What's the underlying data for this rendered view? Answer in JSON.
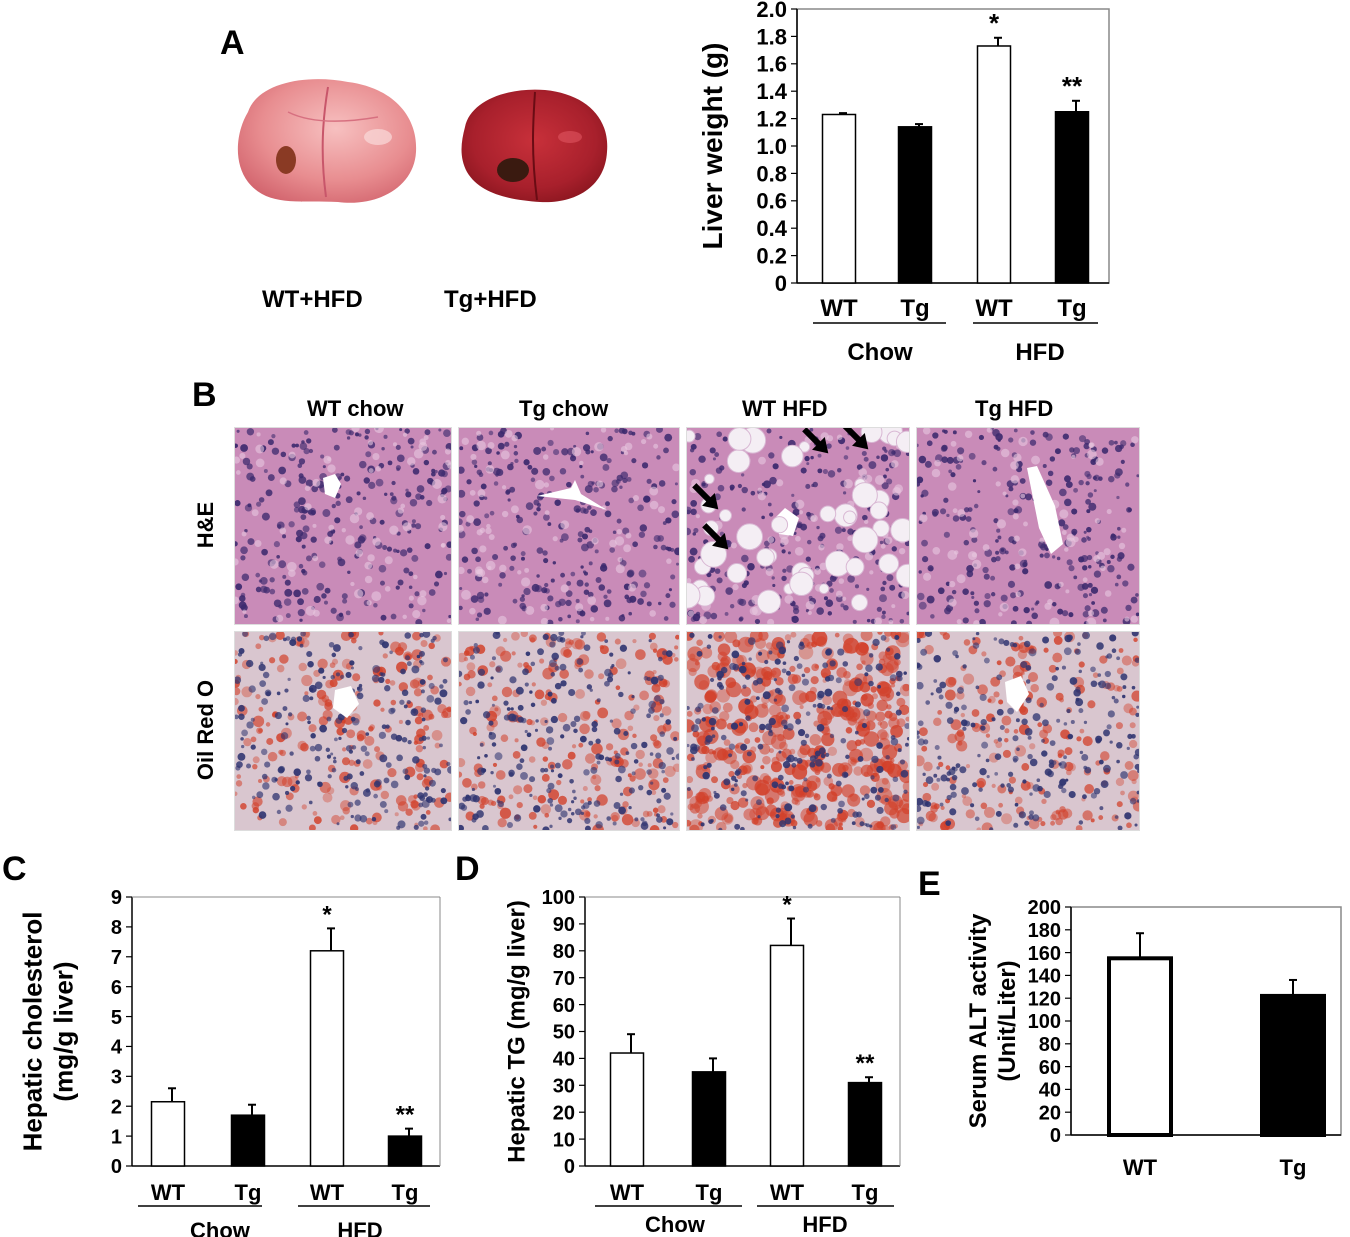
{
  "panel_labels": [
    "A",
    "B",
    "C",
    "D",
    "E"
  ],
  "panelA": {
    "photo_labels": [
      "WT+HFD",
      "Tg+HFD"
    ]
  },
  "panelB": {
    "columns": [
      "WT chow",
      "Tg chow",
      "WT HFD",
      "Tg HFD"
    ],
    "rows": [
      "H&E",
      "Oil Red O"
    ]
  },
  "colors": {
    "wt_fill": "#ffffff",
    "tg_fill": "#000000",
    "he_bg": "#c98bb8",
    "he_nucleus": "#3d2a6e",
    "oro_bg": "#d9c6cf",
    "oro_lipid": "#d2402a",
    "oro_nucleus": "#2f3470"
  },
  "chart_data": [
    {
      "id": "liver-weight",
      "type": "bar",
      "ylabel": "Liver weight (g)",
      "ylim": [
        0,
        2.0
      ],
      "yticks": [
        "0",
        "0.2",
        "0.4",
        "0.6",
        "0.8",
        "1.0",
        "1.2",
        "1.4",
        "1.6",
        "1.8",
        "2.0"
      ],
      "categories": [
        "WT",
        "Tg",
        "WT",
        "Tg"
      ],
      "groups": [
        "Chow",
        "HFD"
      ],
      "values": [
        1.23,
        1.14,
        1.73,
        1.25
      ],
      "errors": [
        0.01,
        0.02,
        0.06,
        0.08
      ],
      "annotations": [
        "",
        "",
        "*",
        "**"
      ],
      "fills": [
        "white",
        "black",
        "white",
        "black"
      ]
    },
    {
      "id": "hepatic-cholesterol",
      "type": "bar",
      "ylabel": [
        "Hepatic cholesterol",
        "(mg/g liver)"
      ],
      "ylim": [
        0,
        9
      ],
      "yticks": [
        "0",
        "1",
        "2",
        "3",
        "4",
        "5",
        "6",
        "7",
        "8",
        "9"
      ],
      "categories": [
        "WT",
        "Tg",
        "WT",
        "Tg"
      ],
      "groups": [
        "Chow",
        "HFD"
      ],
      "values": [
        2.15,
        1.7,
        7.2,
        1.0
      ],
      "errors": [
        0.45,
        0.35,
        0.75,
        0.25
      ],
      "annotations": [
        "",
        "",
        "*",
        "**"
      ],
      "fills": [
        "white",
        "black",
        "white",
        "black"
      ]
    },
    {
      "id": "hepatic-tg",
      "type": "bar",
      "ylabel": "Hepatic TG (mg/g liver)",
      "ylim": [
        0,
        100
      ],
      "yticks": [
        "0",
        "10",
        "20",
        "30",
        "40",
        "50",
        "60",
        "70",
        "80",
        "90",
        "100"
      ],
      "categories": [
        "WT",
        "Tg",
        "WT",
        "Tg"
      ],
      "groups": [
        "Chow",
        "HFD"
      ],
      "values": [
        42,
        35,
        82,
        31
      ],
      "errors": [
        7,
        5,
        10,
        2
      ],
      "annotations": [
        "",
        "",
        "*",
        "**"
      ],
      "fills": [
        "white",
        "black",
        "white",
        "black"
      ]
    },
    {
      "id": "serum-alt",
      "type": "bar",
      "ylabel": [
        "Serum  ALT activity",
        "(Unit/Liter)"
      ],
      "ylim": [
        0,
        200
      ],
      "yticks": [
        "0",
        "20",
        "40",
        "60",
        "80",
        "100",
        "120",
        "140",
        "160",
        "180",
        "200"
      ],
      "categories": [
        "WT",
        "Tg"
      ],
      "groups": [],
      "values": [
        155,
        122
      ],
      "errors": [
        22,
        14
      ],
      "annotations": [
        "",
        ""
      ],
      "fills": [
        "white",
        "black"
      ]
    }
  ]
}
